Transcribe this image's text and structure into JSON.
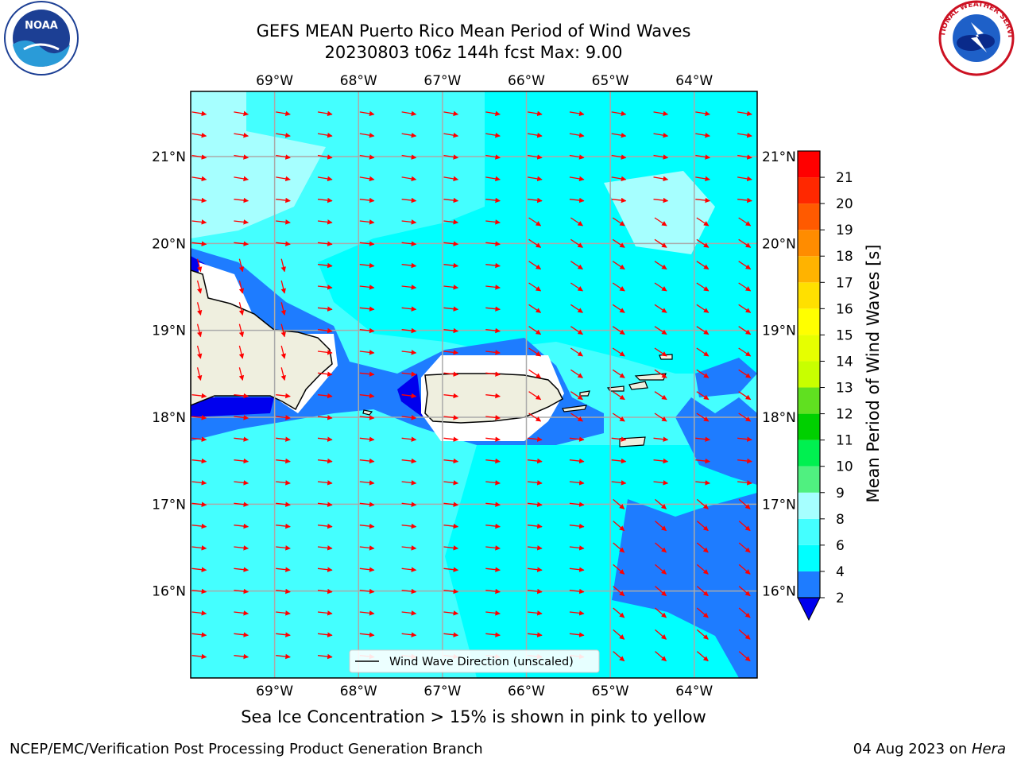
{
  "header": {
    "title_line1": "GEFS MEAN Puerto Rico Mean Period of Wind Waves",
    "title_line2": "20230803 t06z 144h fcst   Max: 9.00"
  },
  "logos": {
    "left": "noaa-logo",
    "left_text": "NOAA",
    "right": "national-weather-service-logo",
    "right_text": "NATIONAL WEATHER SERVICE"
  },
  "map": {
    "lon_range": [
      -70.0,
      -63.25
    ],
    "lat_range": [
      15.0,
      21.75
    ],
    "lon_ticks": [
      "69°W",
      "68°W",
      "67°W",
      "66°W",
      "65°W",
      "64°W"
    ],
    "lat_ticks": [
      "21°N",
      "20°N",
      "19°N",
      "18°N",
      "17°N",
      "16°N"
    ],
    "grid": true,
    "legend": "Wind Wave Direction (unscaled)",
    "legend_position": "bottom-center",
    "arrow_color": "#ff0000",
    "land_color": "#efefdf",
    "coastline_color": "#000000"
  },
  "colorbar": {
    "label": "Mean Period of Wind Waves [s]",
    "levels": [
      "2",
      "4",
      "6",
      "8",
      "9",
      "10",
      "11",
      "12",
      "13",
      "14",
      "15",
      "16",
      "17",
      "18",
      "19",
      "20",
      "21"
    ],
    "colors": [
      "#1e7cff",
      "#00ffff",
      "#44ffff",
      "#a6ffff",
      "#50f080",
      "#00f050",
      "#00d000",
      "#60e020",
      "#c8ff00",
      "#e6ff00",
      "#ffff00",
      "#ffe000",
      "#ffb300",
      "#ff8c00",
      "#ff5a00",
      "#ff2800",
      "#ff0000"
    ],
    "under_color": "#0000ee"
  },
  "note": "Sea Ice Concentration > 15% is shown in pink to yellow",
  "footer": {
    "left": "NCEP/EMC/Verification Post Processing Product Generation Branch",
    "right_date": "04 Aug 2023 on ",
    "right_host": "Hera"
  }
}
